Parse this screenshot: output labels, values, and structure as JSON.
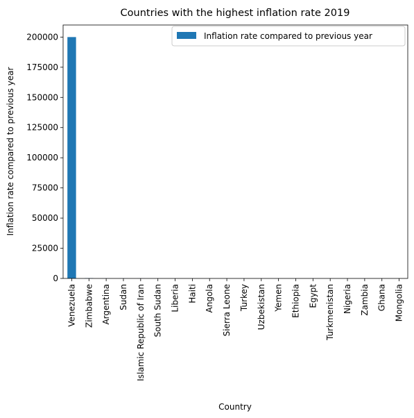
{
  "chart_data": {
    "type": "bar",
    "title": "Countries with the highest inflation rate 2019",
    "xlabel": "Country",
    "ylabel": "Inflation rate compared to previous year",
    "ylim": [
      0,
      210000
    ],
    "yticks": [
      0,
      25000,
      50000,
      75000,
      100000,
      125000,
      150000,
      175000,
      200000
    ],
    "grid": false,
    "legend_position": "top-right",
    "bar_color": "#1f77b4",
    "categories": [
      "Venezuela",
      "Zimbabwe",
      "Argentina",
      "Sudan",
      "Islamic Republic of Iran",
      "South Sudan",
      "Liberia",
      "Haiti",
      "Angola",
      "Sierra Leone",
      "Turkey",
      "Uzbekistan",
      "Yemen",
      "Ethiopia",
      "Egypt",
      "Turkmenistan",
      "Nigeria",
      "Zambia",
      "Ghana",
      "Mongolia"
    ],
    "series": [
      {
        "name": "Inflation rate compared to previous year",
        "values": [
          200000,
          255.3,
          53.5,
          51,
          41.1,
          24.5,
          23.6,
          17.3,
          17.1,
          14.8,
          15.2,
          14.5,
          10,
          15.8,
          13.9,
          13.4,
          11.4,
          9.8,
          7.2,
          7.3
        ]
      }
    ]
  }
}
